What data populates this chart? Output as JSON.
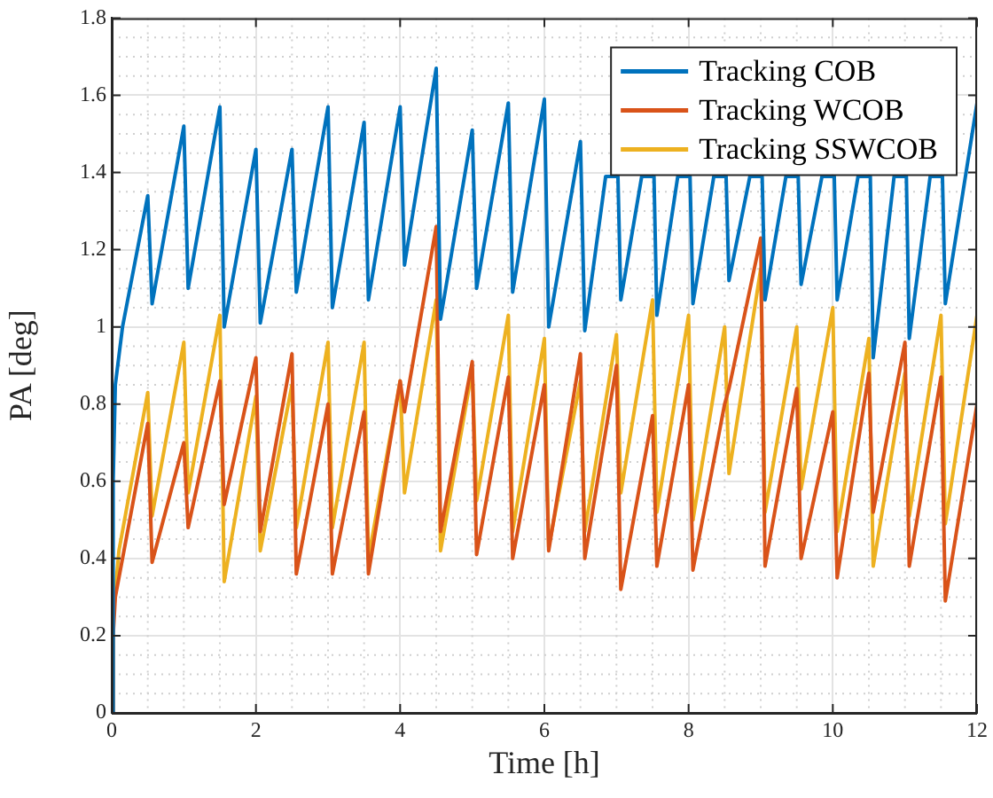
{
  "chart_data": {
    "type": "line",
    "xlabel": "Time [h]",
    "ylabel": "PA [deg]",
    "xlim": [
      0,
      12
    ],
    "xticks": [
      0,
      2,
      4,
      6,
      8,
      10,
      12
    ],
    "ylim": [
      0,
      1.8
    ],
    "yticks": [
      0,
      0.2,
      0.4,
      0.6,
      0.8,
      1,
      1.2,
      1.4,
      1.6,
      1.8
    ],
    "grid": true,
    "legend": "top right",
    "marker": "none",
    "line_style": "solid",
    "series": [
      {
        "name": "Tracking COB",
        "color": "#0072bd",
        "x": [
          0,
          0.02,
          0.05,
          0.15,
          0.5,
          0.56,
          1.0,
          1.06,
          1.5,
          1.56,
          2.0,
          2.06,
          2.5,
          2.56,
          3.0,
          3.06,
          3.5,
          3.56,
          4.0,
          4.06,
          4.5,
          4.56,
          5.0,
          5.06,
          5.5,
          5.56,
          6.0,
          6.06,
          6.5,
          6.56,
          6.85,
          7.02,
          7.06,
          7.35,
          7.52,
          7.56,
          7.85,
          8.02,
          8.06,
          8.35,
          8.52,
          8.56,
          8.85,
          9.02,
          9.06,
          9.35,
          9.52,
          9.56,
          9.85,
          10.02,
          10.06,
          10.35,
          10.52,
          10.56,
          10.85,
          11.02,
          11.06,
          11.35,
          11.52,
          11.56,
          12
        ],
        "values": [
          0,
          0.6,
          0.85,
          1.0,
          1.34,
          1.06,
          1.52,
          1.1,
          1.57,
          1.0,
          1.46,
          1.01,
          1.46,
          1.09,
          1.57,
          1.05,
          1.53,
          1.07,
          1.57,
          1.16,
          1.67,
          1.02,
          1.51,
          1.1,
          1.58,
          1.09,
          1.59,
          1.0,
          1.48,
          0.99,
          1.39,
          1.39,
          1.07,
          1.39,
          1.39,
          1.03,
          1.39,
          1.39,
          1.06,
          1.39,
          1.39,
          1.12,
          1.39,
          1.39,
          1.07,
          1.39,
          1.39,
          1.11,
          1.39,
          1.39,
          1.07,
          1.39,
          1.39,
          0.92,
          1.39,
          1.39,
          0.97,
          1.39,
          1.39,
          1.06,
          1.58
        ]
      },
      {
        "name": "Tracking WCOB",
        "color": "#d95319",
        "x": [
          0,
          0.02,
          0.05,
          0.5,
          0.56,
          1.0,
          1.06,
          1.5,
          1.56,
          2.0,
          2.06,
          2.5,
          2.56,
          3.0,
          3.06,
          3.5,
          3.56,
          4.0,
          4.06,
          4.5,
          4.56,
          5.0,
          5.06,
          5.5,
          5.56,
          6.0,
          6.06,
          6.5,
          6.56,
          7.0,
          7.06,
          7.5,
          7.56,
          8.0,
          8.06,
          8.5,
          8.56,
          9.0,
          9.06,
          9.5,
          9.56,
          10.0,
          10.06,
          10.5,
          10.56,
          11.0,
          11.06,
          11.5,
          11.56,
          12
        ],
        "values": [
          0,
          0.2,
          0.3,
          0.75,
          0.39,
          0.7,
          0.48,
          0.86,
          0.54,
          0.92,
          0.47,
          0.93,
          0.36,
          0.8,
          0.36,
          0.78,
          0.36,
          0.86,
          0.78,
          1.26,
          0.47,
          0.91,
          0.41,
          0.87,
          0.4,
          0.85,
          0.42,
          0.93,
          0.4,
          0.9,
          0.32,
          0.77,
          0.38,
          0.85,
          0.37,
          0.8,
          0.84,
          1.23,
          0.38,
          0.84,
          0.4,
          0.78,
          0.35,
          0.88,
          0.52,
          0.96,
          0.38,
          0.87,
          0.29,
          0.8
        ]
      },
      {
        "name": "Tracking SSWCOB",
        "color": "#edb120",
        "x": [
          0,
          0.02,
          0.1,
          0.5,
          0.56,
          1.0,
          1.06,
          1.5,
          1.56,
          2.0,
          2.06,
          2.5,
          2.56,
          3.0,
          3.06,
          3.5,
          3.56,
          4.0,
          4.06,
          4.5,
          4.56,
          5.0,
          5.06,
          5.5,
          5.56,
          6.0,
          6.06,
          6.5,
          6.56,
          7.0,
          7.06,
          7.5,
          7.56,
          8.0,
          8.06,
          8.5,
          8.56,
          9.0,
          9.06,
          9.5,
          9.56,
          10.0,
          10.06,
          10.5,
          10.56,
          11.0,
          11.06,
          11.5,
          11.56,
          12
        ],
        "values": [
          0,
          0.25,
          0.42,
          0.83,
          0.51,
          0.96,
          0.57,
          1.03,
          0.34,
          0.82,
          0.42,
          0.85,
          0.48,
          0.96,
          0.48,
          0.96,
          0.4,
          0.86,
          0.57,
          1.07,
          0.42,
          0.89,
          0.55,
          1.03,
          0.47,
          0.97,
          0.43,
          0.86,
          0.47,
          0.98,
          0.57,
          1.07,
          0.52,
          1.03,
          0.5,
          1.0,
          0.62,
          1.15,
          0.52,
          1.0,
          0.58,
          1.05,
          0.47,
          0.97,
          0.38,
          0.88,
          0.51,
          1.03,
          0.49,
          1.03
        ]
      }
    ]
  }
}
